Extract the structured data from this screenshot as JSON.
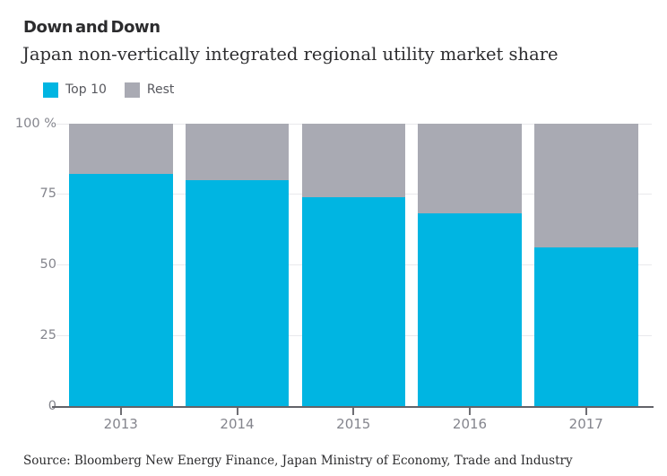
{
  "header": {
    "title": "Down and Down",
    "subtitle": "Japan non-vertically integrated regional utility market share"
  },
  "legend": {
    "items": [
      {
        "label": "Top 10",
        "color": "#00b5e2"
      },
      {
        "label": "Rest",
        "color": "#a9aab3"
      }
    ]
  },
  "footer": {
    "source": "Source: Bloomberg New Energy Finance, Japan Ministry of Economy, Trade and Industry"
  },
  "chart_data": {
    "type": "bar",
    "stacked": true,
    "title": "Down and Down",
    "subtitle": "Japan non-vertically integrated regional utility market share",
    "categories": [
      "2013",
      "2014",
      "2015",
      "2016",
      "2017"
    ],
    "series": [
      {
        "name": "Top 10",
        "color": "#00b5e2",
        "values": [
          82,
          80,
          74,
          68,
          56
        ]
      },
      {
        "name": "Rest",
        "color": "#a9aab3",
        "values": [
          18,
          20,
          26,
          32,
          44
        ]
      }
    ],
    "ylabel": "%",
    "ylim": [
      0,
      100
    ],
    "yticks": [
      0,
      25,
      50,
      75,
      100
    ],
    "ytick_labels": [
      "0",
      "25",
      "50",
      "75",
      "100 %"
    ],
    "grid": true,
    "legend_position": "top-left",
    "colors": {
      "gridline": "#e9e9ec",
      "axis_line": "#636369",
      "axis_text": "#84858d"
    }
  }
}
